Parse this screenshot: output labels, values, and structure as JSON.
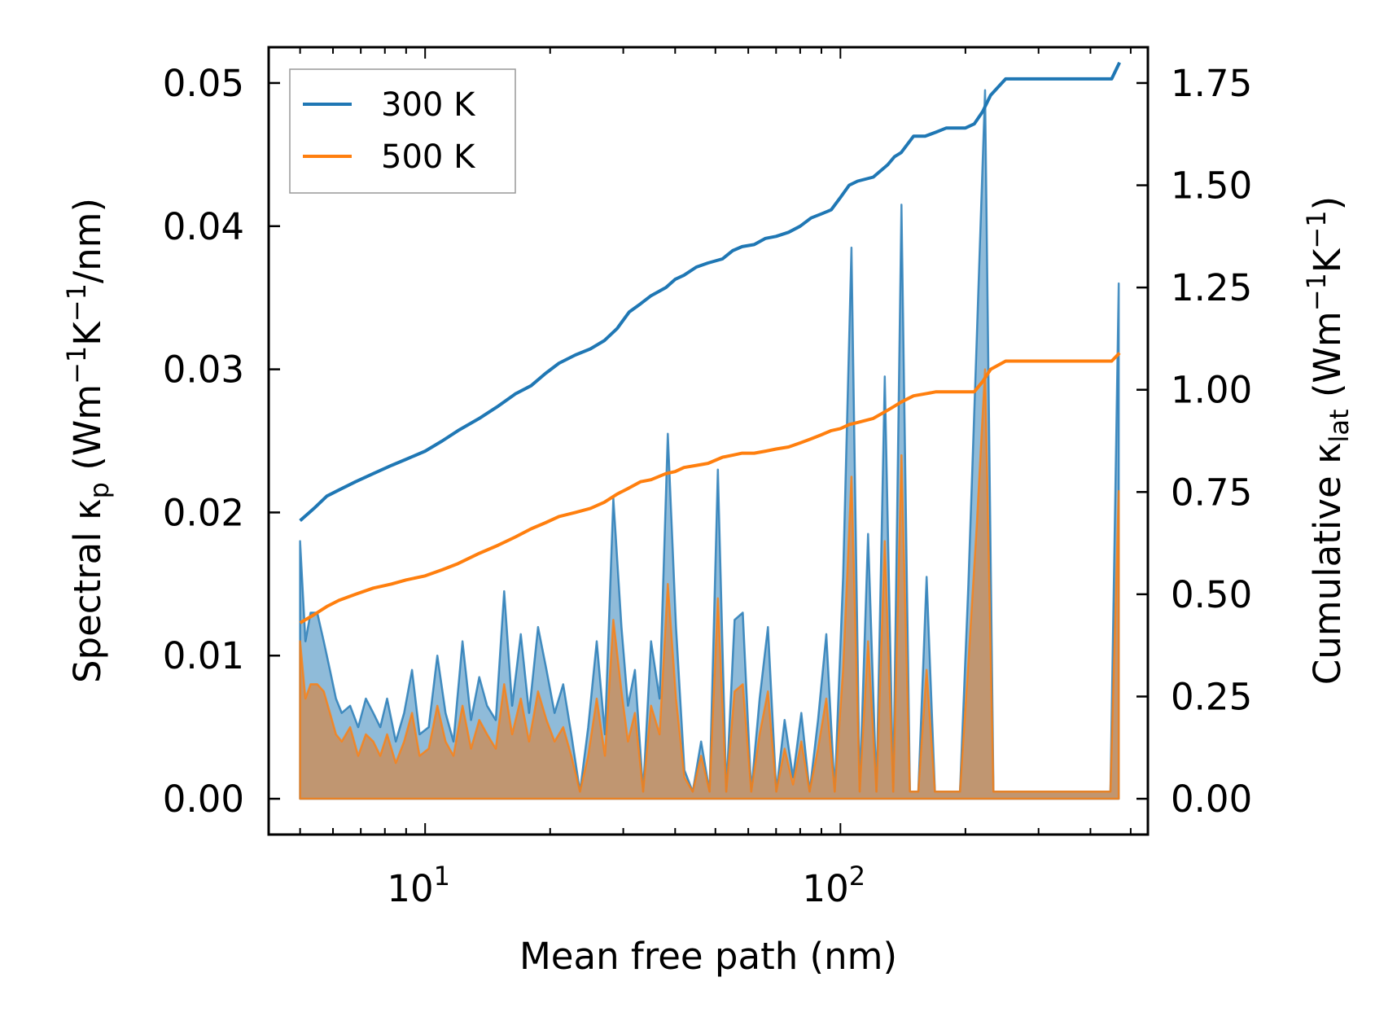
{
  "chart_data": {
    "type": "line",
    "xscale": "log",
    "xlabel": "Mean free path (nm)",
    "ylabel_left": {
      "prefix": "Spectral κ",
      "sub": "p",
      "suffix": " (Wm",
      "sup1": "−1",
      "mid": "K",
      "sup2": "−1",
      "end": "/nm)"
    },
    "ylabel_right": {
      "prefix": "Cumulative κ",
      "sub": "lat",
      "suffix": " (Wm",
      "sup1": "−1",
      "mid": "K",
      "sup2": "−1",
      "end": ")"
    },
    "xlim": [
      4.2,
      550
    ],
    "ylim_left": [
      -0.0025,
      0.0525
    ],
    "ylim_right": [
      -0.0875,
      1.8375
    ],
    "xticks": [
      {
        "value": 10,
        "base": "10",
        "exp": "1"
      },
      {
        "value": 100,
        "base": "10",
        "exp": "2"
      }
    ],
    "yticks_left": [
      "0.00",
      "0.01",
      "0.02",
      "0.03",
      "0.04",
      "0.05"
    ],
    "yticks_left_values": [
      0,
      0.01,
      0.02,
      0.03,
      0.04,
      0.05
    ],
    "yticks_right": [
      "0.00",
      "0.25",
      "0.50",
      "0.75",
      "1.00",
      "1.25",
      "1.50",
      "1.75"
    ],
    "yticks_right_values": [
      0,
      0.25,
      0.5,
      0.75,
      1.0,
      1.25,
      1.5,
      1.75
    ],
    "legend": {
      "position": "top-left",
      "entries": [
        "300 K",
        "500 K"
      ]
    },
    "colors": {
      "300 K": "#1f77b4",
      "500 K": "#ff7f0e",
      "fill_300": "#1f77b4",
      "fill_500": "#d08a4e"
    },
    "series": [
      {
        "name": "300 K",
        "axis": "right",
        "kind": "cumulative",
        "x": [
          5,
          5.4,
          5.8,
          6.2,
          6.8,
          7.5,
          8.3,
          9,
          10,
          11,
          12,
          13.5,
          15,
          16.5,
          18,
          19.5,
          21,
          23,
          25,
          27,
          29,
          31,
          33,
          35,
          38,
          40,
          42,
          45,
          48,
          52,
          55,
          58,
          62,
          66,
          70,
          75,
          80,
          85,
          90,
          95,
          100,
          105,
          110,
          120,
          130,
          135,
          140,
          150,
          160,
          170,
          180,
          190,
          200,
          210,
          220,
          230,
          250,
          300,
          400,
          450,
          470
        ],
        "y": [
          0.68,
          0.71,
          0.74,
          0.755,
          0.775,
          0.795,
          0.815,
          0.83,
          0.85,
          0.875,
          0.9,
          0.93,
          0.96,
          0.99,
          1.01,
          1.04,
          1.065,
          1.085,
          1.1,
          1.12,
          1.15,
          1.19,
          1.21,
          1.23,
          1.25,
          1.27,
          1.28,
          1.3,
          1.31,
          1.32,
          1.34,
          1.35,
          1.355,
          1.37,
          1.375,
          1.385,
          1.4,
          1.42,
          1.43,
          1.44,
          1.47,
          1.5,
          1.51,
          1.52,
          1.55,
          1.57,
          1.58,
          1.62,
          1.62,
          1.63,
          1.64,
          1.64,
          1.64,
          1.65,
          1.68,
          1.72,
          1.76,
          1.76,
          1.76,
          1.76,
          1.8
        ]
      },
      {
        "name": "500 K",
        "axis": "right",
        "kind": "cumulative",
        "x": [
          5,
          5.4,
          5.8,
          6.2,
          6.8,
          7.5,
          8.3,
          9,
          10,
          11,
          12,
          13.5,
          15,
          16.5,
          18,
          19.5,
          21,
          23,
          25,
          27,
          29,
          31,
          33,
          35,
          38,
          40,
          42,
          45,
          48,
          52,
          55,
          58,
          62,
          66,
          70,
          75,
          80,
          85,
          90,
          95,
          100,
          105,
          110,
          120,
          130,
          135,
          140,
          150,
          160,
          170,
          180,
          190,
          200,
          210,
          220,
          230,
          250,
          300,
          400,
          450,
          470
        ],
        "y": [
          0.43,
          0.45,
          0.47,
          0.485,
          0.5,
          0.515,
          0.525,
          0.535,
          0.545,
          0.56,
          0.575,
          0.6,
          0.62,
          0.64,
          0.66,
          0.675,
          0.69,
          0.7,
          0.71,
          0.725,
          0.745,
          0.76,
          0.775,
          0.78,
          0.795,
          0.8,
          0.81,
          0.815,
          0.82,
          0.835,
          0.84,
          0.845,
          0.845,
          0.85,
          0.855,
          0.86,
          0.87,
          0.88,
          0.89,
          0.9,
          0.905,
          0.915,
          0.92,
          0.93,
          0.95,
          0.96,
          0.97,
          0.985,
          0.99,
          0.995,
          0.995,
          0.995,
          0.995,
          0.995,
          1.02,
          1.05,
          1.07,
          1.07,
          1.07,
          1.07,
          1.09
        ]
      },
      {
        "name": "300 K spectral",
        "axis": "left",
        "kind": "spectral",
        "x": [
          5,
          5.15,
          5.3,
          5.5,
          5.7,
          5.9,
          6.1,
          6.3,
          6.6,
          6.9,
          7.2,
          7.5,
          7.8,
          8.1,
          8.5,
          8.9,
          9.3,
          9.7,
          10.2,
          10.7,
          11.2,
          11.7,
          12.3,
          12.9,
          13.5,
          14.1,
          14.8,
          15.5,
          16.2,
          17,
          17.8,
          18.7,
          19.6,
          20.5,
          21.5,
          22.5,
          23.6,
          24.7,
          25.9,
          27.1,
          28.4,
          29.7,
          30.8,
          32,
          33.5,
          35,
          36.7,
          38.4,
          40.2,
          42.1,
          44.1,
          46.2,
          48.4,
          50.7,
          53.1,
          55.6,
          58.2,
          61,
          63.9,
          66.9,
          70.1,
          73.4,
          76.9,
          80.5,
          84.3,
          88.3,
          92.5,
          96.9,
          101.5,
          106.3,
          111.3,
          116.6,
          122.1,
          127.9,
          134,
          140.3,
          147,
          154,
          161.3,
          168.9,
          176.9,
          185.3,
          194.1,
          203.3,
          212.9,
          223,
          233.6,
          244.7,
          256.3,
          268.5,
          281.2,
          294.5,
          308.5,
          323.1,
          338.4,
          354.5,
          371.3,
          388.9,
          407.3,
          426.6,
          446.9,
          468
        ],
        "y": [
          0.018,
          0.011,
          0.013,
          0.013,
          0.011,
          0.009,
          0.007,
          0.006,
          0.0065,
          0.005,
          0.007,
          0.006,
          0.005,
          0.007,
          0.004,
          0.006,
          0.009,
          0.0045,
          0.005,
          0.01,
          0.006,
          0.004,
          0.011,
          0.0055,
          0.0085,
          0.0065,
          0.0055,
          0.0145,
          0.0065,
          0.0115,
          0.006,
          0.012,
          0.009,
          0.006,
          0.008,
          0.0045,
          0.0005,
          0.005,
          0.011,
          0.0045,
          0.021,
          0.012,
          0.0065,
          0.009,
          0.0005,
          0.011,
          0.007,
          0.0255,
          0.012,
          0.002,
          0.0005,
          0.004,
          0.0005,
          0.023,
          0.0005,
          0.0125,
          0.013,
          0.0005,
          0.007,
          0.012,
          0.0005,
          0.0055,
          0.0015,
          0.006,
          0.0005,
          0.0055,
          0.0115,
          0.0005,
          0.0155,
          0.0385,
          0.0005,
          0.0185,
          0.0005,
          0.0295,
          0.0005,
          0.0415,
          0.0005,
          0.0005,
          0.0155,
          0.0005,
          0.0005,
          0.0005,
          0.0005,
          0.015,
          0.032,
          0.0495,
          0.0005,
          0.0005,
          0.0005,
          0.0005,
          0.0005,
          0.0005,
          0.0005,
          0.0005,
          0.0005,
          0.0005,
          0.0005,
          0.0005,
          0.0005,
          0.0005,
          0.0005,
          0.036
        ]
      },
      {
        "name": "500 K spectral",
        "axis": "left",
        "kind": "spectral",
        "x": [
          5,
          5.15,
          5.3,
          5.5,
          5.7,
          5.9,
          6.1,
          6.3,
          6.6,
          6.9,
          7.2,
          7.5,
          7.8,
          8.1,
          8.5,
          8.9,
          9.3,
          9.7,
          10.2,
          10.7,
          11.2,
          11.7,
          12.3,
          12.9,
          13.5,
          14.1,
          14.8,
          15.5,
          16.2,
          17,
          17.8,
          18.7,
          19.6,
          20.5,
          21.5,
          22.5,
          23.6,
          24.7,
          25.9,
          27.1,
          28.4,
          29.7,
          30.8,
          32,
          33.5,
          35,
          36.7,
          38.4,
          40.2,
          42.1,
          44.1,
          46.2,
          48.4,
          50.7,
          53.1,
          55.6,
          58.2,
          61,
          63.9,
          66.9,
          70.1,
          73.4,
          76.9,
          80.5,
          84.3,
          88.3,
          92.5,
          96.9,
          101.5,
          106.3,
          111.3,
          116.6,
          122.1,
          127.9,
          134,
          140.3,
          147,
          154,
          161.3,
          168.9,
          176.9,
          185.3,
          194.1,
          203.3,
          212.9,
          223,
          233.6,
          244.7,
          256.3,
          268.5,
          281.2,
          294.5,
          308.5,
          323.1,
          338.4,
          354.5,
          371.3,
          388.9,
          407.3,
          426.6,
          446.9,
          468
        ],
        "y": [
          0.011,
          0.007,
          0.008,
          0.008,
          0.0075,
          0.006,
          0.0045,
          0.004,
          0.005,
          0.003,
          0.0045,
          0.004,
          0.003,
          0.0045,
          0.0025,
          0.004,
          0.006,
          0.003,
          0.0035,
          0.0065,
          0.004,
          0.003,
          0.0065,
          0.0035,
          0.0055,
          0.0045,
          0.0035,
          0.008,
          0.0045,
          0.007,
          0.004,
          0.0075,
          0.0055,
          0.004,
          0.005,
          0.003,
          0.0005,
          0.003,
          0.007,
          0.003,
          0.0125,
          0.0075,
          0.004,
          0.006,
          0.0005,
          0.0065,
          0.0045,
          0.015,
          0.007,
          0.0015,
          0.0005,
          0.003,
          0.0005,
          0.014,
          0.0005,
          0.0075,
          0.008,
          0.0005,
          0.0045,
          0.0075,
          0.0005,
          0.0035,
          0.001,
          0.004,
          0.0005,
          0.0035,
          0.007,
          0.0005,
          0.009,
          0.0225,
          0.0005,
          0.011,
          0.0005,
          0.018,
          0.0005,
          0.024,
          0.0005,
          0.0005,
          0.009,
          0.0005,
          0.0005,
          0.0005,
          0.0005,
          0.0095,
          0.019,
          0.03,
          0.0005,
          0.0005,
          0.0005,
          0.0005,
          0.0005,
          0.0005,
          0.0005,
          0.0005,
          0.0005,
          0.0005,
          0.0005,
          0.0005,
          0.0005,
          0.0005,
          0.0005,
          0.0215
        ]
      }
    ]
  }
}
